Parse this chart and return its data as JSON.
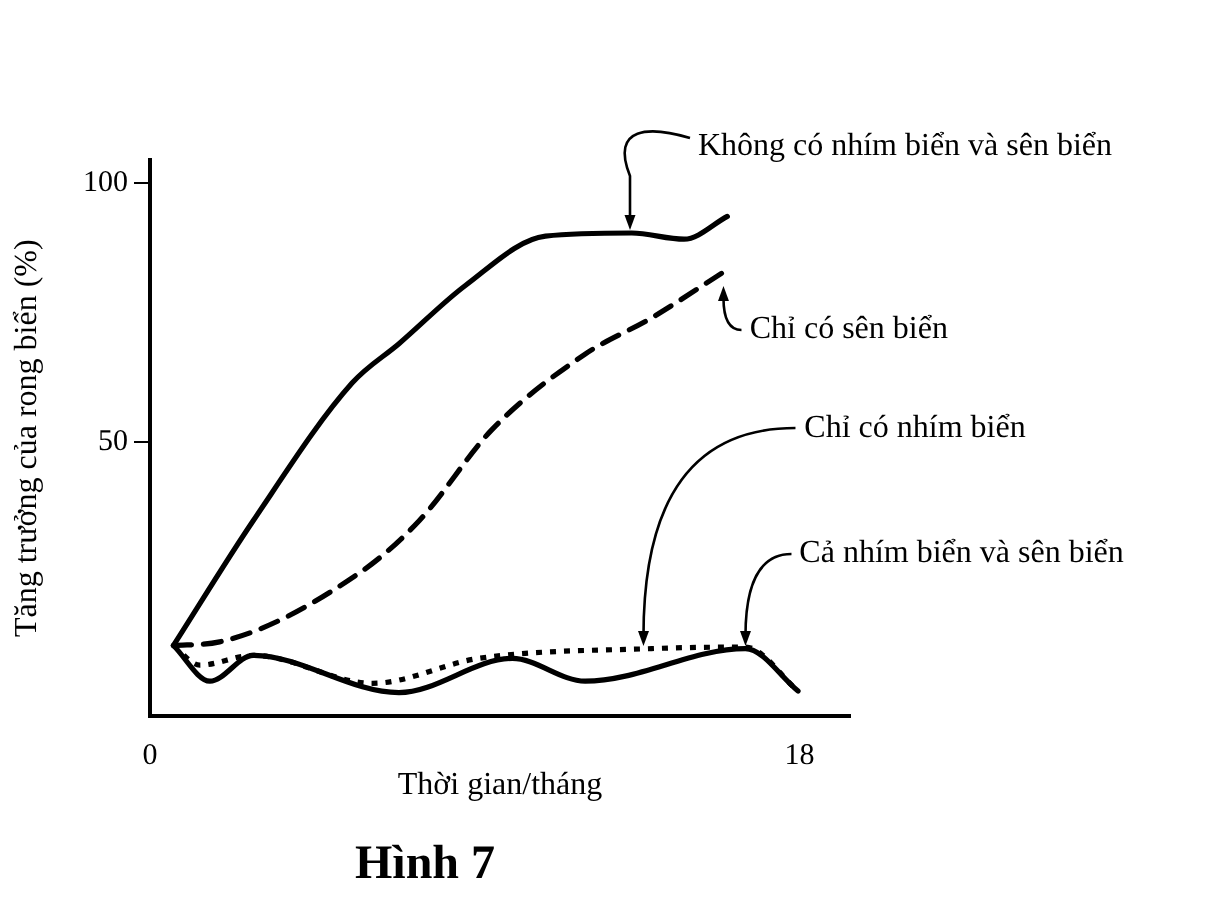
{
  "chart_data": {
    "type": "line",
    "title": "Hình 7",
    "xlabel": "Thời gian/tháng",
    "ylabel": "Tăng trưởng của rong biển (%)",
    "xlim": [
      0,
      19.4
    ],
    "xticks": [
      0,
      18
    ],
    "ylim": [
      -3,
      104.5
    ],
    "yticks": [
      50,
      100
    ],
    "grid": false,
    "legend": false,
    "marker": "none",
    "series": [
      {
        "color": "#000000",
        "line_style": "solid",
        "x": [
          0.65,
          2.86,
          5.6,
          6.9,
          8.75,
          10.96,
          13.35,
          14.8,
          16.0
        ],
        "values": [
          10.7,
          34.8,
          61.4,
          69,
          80.3,
          89.8,
          90.4,
          89.2,
          93.6
        ]
      },
      {
        "color": "#000000",
        "line_style": "dashed",
        "x": [
          0.65,
          1.93,
          5.8,
          7.46,
          9.49,
          12.06,
          13.9,
          15.84
        ],
        "values": [
          10.7,
          11.4,
          24.7,
          34.8,
          52.5,
          67,
          74,
          82.6
        ]
      },
      {
        "color": "#000000",
        "line_style": "dotted",
        "x": [
          0.65,
          1.38,
          2.86,
          6.17,
          9.1,
          13.9,
          16.5,
          17.96
        ],
        "values": [
          10.7,
          6.9,
          8.8,
          3.4,
          8.2,
          10.1,
          10.4,
          1.9
        ]
      },
      {
        "color": "#000000",
        "line_style": "solid",
        "x": [
          0.65,
          1.66,
          2.86,
          6.9,
          10.04,
          12.06,
          16.5,
          17.96
        ],
        "values": [
          10.7,
          3.8,
          8.8,
          1.6,
          8.2,
          3.8,
          10.1,
          1.9
        ]
      }
    ],
    "annotations": [
      {
        "text": "Không có nhím biển và sên biển",
        "x": 13.3,
        "y": 90.4
      },
      {
        "text": "Chỉ có sên biển",
        "x": 15.9,
        "y": 82.6
      },
      {
        "text": "Chỉ có nhím biển",
        "x": 13.7,
        "y": 10.1
      },
      {
        "text": "Cả nhím biển và sên biển",
        "x": 16.5,
        "y": 10.3
      }
    ]
  }
}
